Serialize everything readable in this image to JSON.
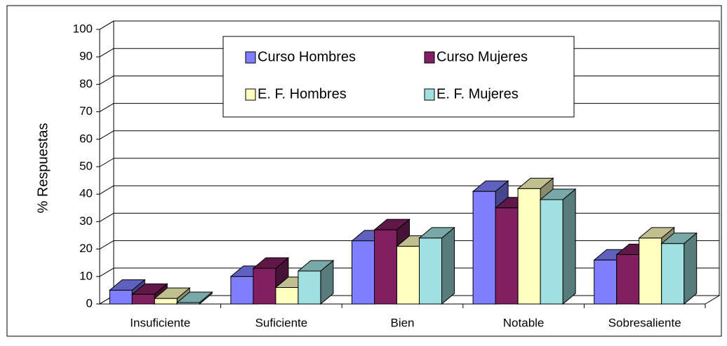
{
  "chart_data": {
    "type": "bar3d",
    "y_label": "% Respuestas",
    "categories": [
      "Insuficiente",
      "Suficiente",
      "Bien",
      "Notable",
      "Sobresaliente"
    ],
    "series": [
      {
        "name": "Curso Hombres",
        "color": "#8080ff",
        "values": [
          5,
          10,
          23,
          41,
          16
        ]
      },
      {
        "name": "Curso Mujeres",
        "color": "#802060",
        "values": [
          3.5,
          13,
          27,
          35,
          18
        ]
      },
      {
        "name": "E. F. Hombres",
        "color": "#ffffc0",
        "values": [
          2,
          6,
          21,
          42,
          24
        ]
      },
      {
        "name": "E. F. Mujeres",
        "color": "#a0e0e0",
        "values": [
          0.5,
          12,
          24,
          38,
          22
        ]
      }
    ],
    "ylim": [
      0,
      100
    ],
    "yticks": [
      0,
      10,
      20,
      30,
      40,
      50,
      60,
      70,
      80,
      90,
      100
    ],
    "grid": true
  }
}
